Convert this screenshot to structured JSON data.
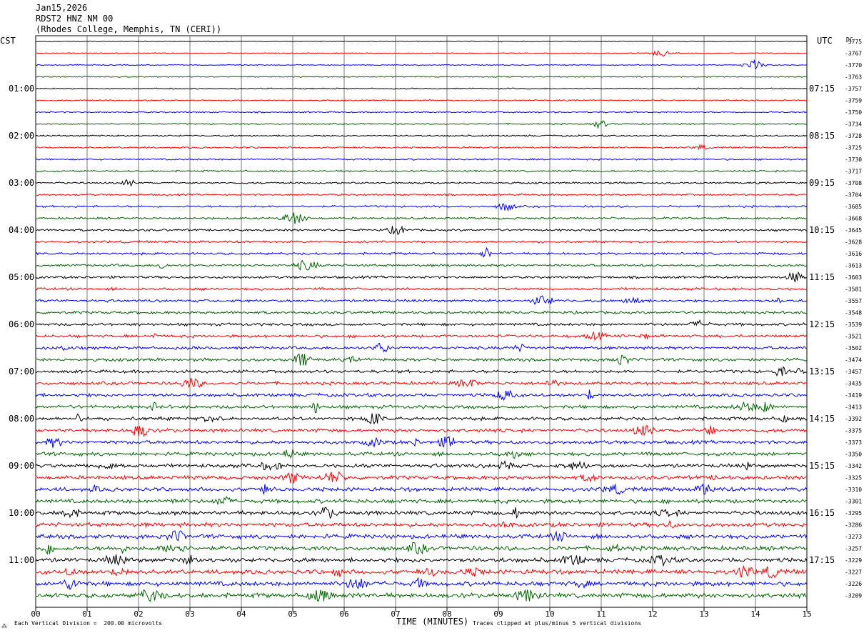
{
  "header": {
    "date": "Jan15,2026",
    "station": "RDST2 HNZ NM 00",
    "location": "(Rhodes College, Memphis, TN (CERI))"
  },
  "left_axis_label": "CST",
  "right_axis_label": "UTC",
  "dc_label": "DC",
  "footer": {
    "logo": "⁂",
    "scale_note": "Each Vertical Division =  200.00 microvolts",
    "clip_note": "Traces clipped at plus/minus 5 vertical divisions"
  },
  "chart_data": {
    "type": "line",
    "title": "RDST2 HNZ NM 00",
    "xlabel": "TIME (MINUTES)",
    "x_ticks": [
      "00",
      "01",
      "02",
      "03",
      "04",
      "05",
      "06",
      "07",
      "08",
      "09",
      "10",
      "11",
      "12",
      "13",
      "14",
      "15"
    ],
    "xlim": [
      0,
      15
    ],
    "grid": true,
    "trace_colors": [
      "#000000",
      "#ff0000",
      "#0000ff",
      "#006400"
    ],
    "left_time_labels": [
      "01:00",
      "02:00",
      "03:00",
      "04:00",
      "05:00",
      "06:00",
      "07:00",
      "08:00",
      "09:00",
      "10:00",
      "11:00"
    ],
    "right_time_labels": [
      "07:15",
      "08:15",
      "09:15",
      "10:15",
      "11:15",
      "12:15",
      "13:15",
      "14:15",
      "15:15",
      "16:15",
      "17:15"
    ],
    "trace_offsets": [
      -3775,
      -3767,
      -3770,
      -3763,
      -3757,
      -3759,
      -3750,
      -3734,
      -3728,
      -3725,
      -3730,
      -3717,
      -3708,
      -3704,
      -3685,
      -3668,
      -3645,
      -3628,
      -3616,
      -3613,
      -3603,
      -3581,
      -3557,
      -3548,
      -3539,
      -3521,
      -3502,
      -3474,
      -3457,
      -3435,
      -3419,
      -3413,
      -3392,
      -3375,
      -3373,
      -3350,
      -3342,
      -3325,
      -3310,
      -3301,
      -3295,
      -3286,
      -3273,
      -3257,
      -3229,
      -3227,
      -3226,
      -3209
    ]
  }
}
